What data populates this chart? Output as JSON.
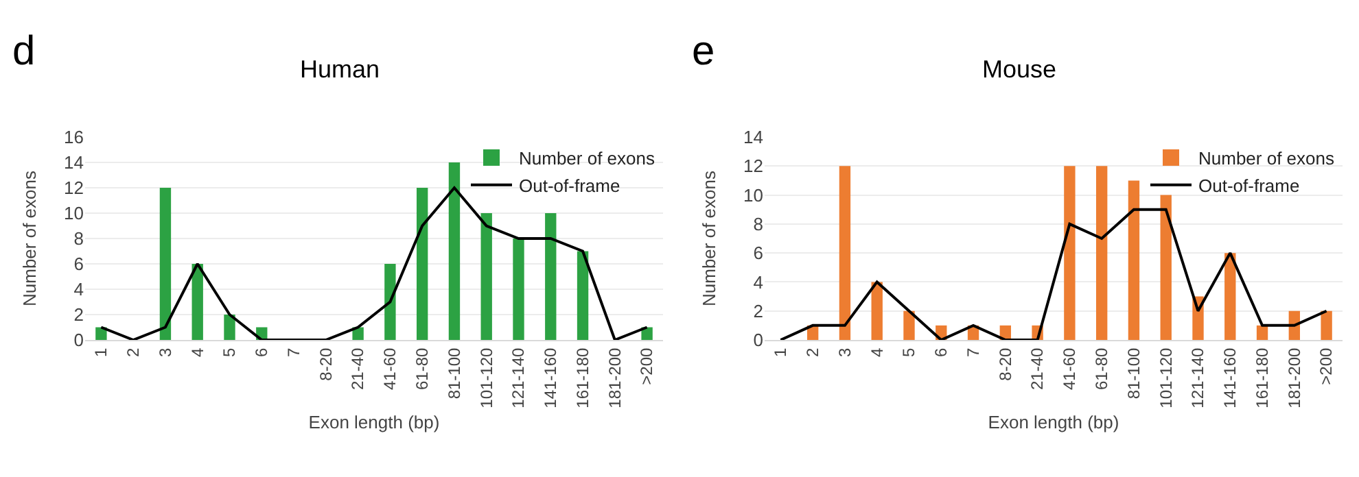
{
  "chart_data": [
    {
      "type": "bar",
      "title": "Human",
      "xlabel": "Exon length (bp)",
      "ylabel": "Number of exons",
      "annotations": [
        "d"
      ],
      "categories": [
        "1",
        "2",
        "3",
        "4",
        "5",
        "6",
        "7",
        "8-20",
        "21-40",
        "41-60",
        "61-80",
        "81-100",
        "101-120",
        "121-140",
        "141-160",
        "161-180",
        "181-200",
        ">200"
      ],
      "series": [
        {
          "name": "Number of exons",
          "color": "#2ca243",
          "values": [
            1,
            0,
            12,
            6,
            2,
            1,
            0,
            0,
            1,
            6,
            12,
            14,
            10,
            8,
            10,
            7,
            0,
            1
          ]
        },
        {
          "name": "Out-of-frame",
          "type": "line",
          "color": "#000000",
          "values": [
            1,
            0,
            1,
            6,
            2,
            0,
            0,
            0,
            1,
            3,
            9,
            12,
            9,
            8,
            8,
            7,
            0,
            1
          ]
        }
      ],
      "ylim": [
        0,
        16
      ],
      "yticks": [
        0,
        2,
        4,
        6,
        8,
        10,
        12,
        14,
        16
      ],
      "grid": "y",
      "legend": "top right",
      "marker": "none",
      "line_style": "solid"
    },
    {
      "type": "bar",
      "title": "Mouse",
      "xlabel": "Exon length (bp)",
      "ylabel": "Number of exons",
      "annotations": [
        "e"
      ],
      "categories": [
        "1",
        "2",
        "3",
        "4",
        "5",
        "6",
        "7",
        "8-20",
        "21-40",
        "41-60",
        "61-80",
        "81-100",
        "101-120",
        "121-140",
        "141-160",
        "161-180",
        "181-200",
        ">200"
      ],
      "series": [
        {
          "name": "Number of exons",
          "color": "#ed7d31",
          "values": [
            0,
            1,
            12,
            4,
            2,
            1,
            1,
            1,
            1,
            12,
            12,
            11,
            10,
            3,
            6,
            1,
            2,
            2
          ]
        },
        {
          "name": "Out-of-frame",
          "type": "line",
          "color": "#000000",
          "values": [
            0,
            1,
            1,
            4,
            2,
            0,
            1,
            0,
            0,
            8,
            7,
            9,
            9,
            2,
            6,
            1,
            1,
            2
          ]
        }
      ],
      "ylim": [
        0,
        14
      ],
      "yticks": [
        0,
        2,
        4,
        6,
        8,
        10,
        12,
        14
      ],
      "grid": "y",
      "legend": "top right",
      "marker": "none",
      "line_style": "solid"
    }
  ]
}
